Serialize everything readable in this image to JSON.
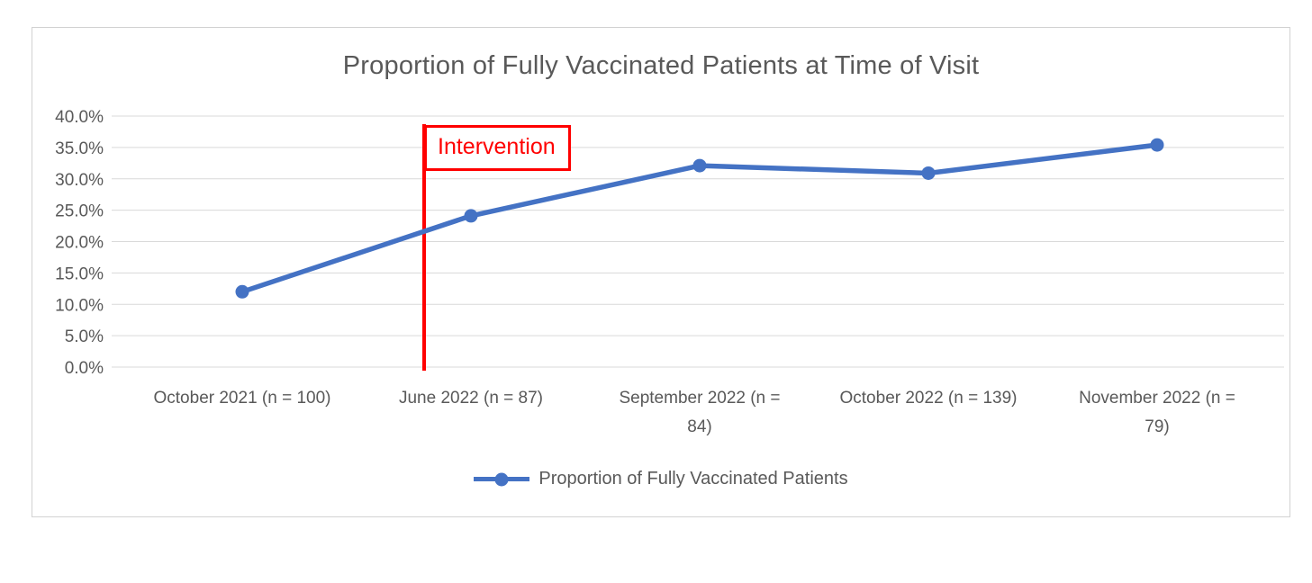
{
  "chart_data": {
    "type": "line",
    "title": "Proportion of Fully Vaccinated Patients at Time of Visit",
    "categories": [
      "October 2021 (n = 100)",
      "June 2022 (n = 87)",
      "September 2022 (n = 84)",
      "October 2022 (n = 139)",
      "November 2022 (n = 79)"
    ],
    "series": [
      {
        "name": "Proportion of Fully Vaccinated Patients",
        "values": [
          12.0,
          24.1,
          32.1,
          30.9,
          35.4
        ]
      }
    ],
    "ylim": [
      0,
      40
    ],
    "ytick_step": 5,
    "ytick_format": "percent_one_decimal",
    "grid": true,
    "legend_position": "bottom",
    "annotation": {
      "label": "Intervention",
      "type": "vertical-line-with-label-box",
      "position": "between October 2021 and June 2022, just left of June 2022 data point",
      "color": "#FF0000"
    },
    "colors": {
      "series": "#4472C4",
      "grid": "#D9D9D9",
      "axis_text": "#595959",
      "title": "#595959",
      "annotation": "#FF0000"
    }
  }
}
